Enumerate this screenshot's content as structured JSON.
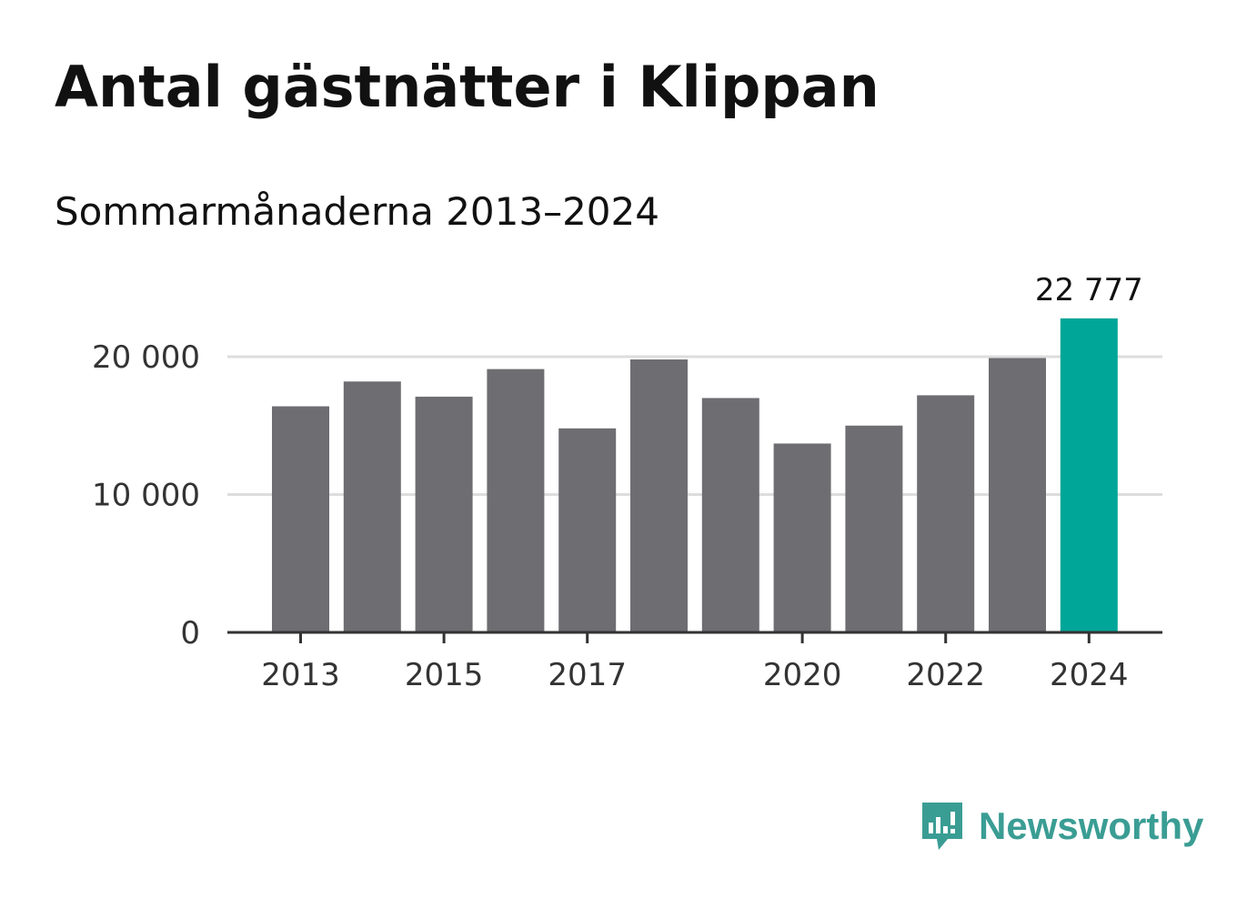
{
  "chart_data": {
    "type": "bar",
    "title": "Antal gästnätter i Klippan",
    "subtitle": "Sommarmånaderna 2013–2024",
    "categories": [
      "2013",
      "2014",
      "2015",
      "2016",
      "2017",
      "2018",
      "2019",
      "2020",
      "2021",
      "2022",
      "2023",
      "2024"
    ],
    "values": [
      16400,
      18200,
      17100,
      19100,
      14800,
      19800,
      17000,
      13700,
      15000,
      17200,
      19900,
      22777
    ],
    "x_tick_labels": [
      "2013",
      "2015",
      "2017",
      "2020",
      "2022",
      "2024"
    ],
    "y_ticks": [
      0,
      10000,
      20000
    ],
    "y_tick_labels": [
      "0",
      "10 000",
      "20 000"
    ],
    "ylim": [
      0,
      22777
    ],
    "highlight": {
      "category": "2024",
      "value_label": "22 777"
    },
    "xlabel": "",
    "ylabel": "",
    "grid": true,
    "colors": {
      "bar": "#6e6d72",
      "highlight": "#00a698",
      "grid": "#dddddd",
      "axis": "#333333"
    }
  },
  "branding": {
    "name": "Newsworthy",
    "icon": "newsworthy-logo-icon",
    "color": "#3a9d94"
  }
}
